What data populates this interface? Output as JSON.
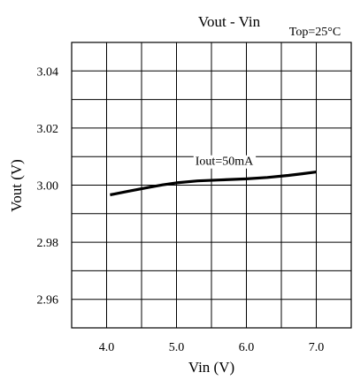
{
  "chart_data": {
    "type": "line",
    "title": "Vout - Vin",
    "condition": "Top=25°C",
    "xlabel": "Vin (V)",
    "ylabel": "Vout (V)",
    "xlim": [
      3.5,
      7.5
    ],
    "ylim": [
      2.95,
      3.05
    ],
    "x_ticks": [
      4.0,
      5.0,
      6.0,
      7.0
    ],
    "x_tick_labels": [
      "4.0",
      "5.0",
      "6.0",
      "7.0"
    ],
    "y_ticks": [
      2.96,
      2.98,
      3.0,
      3.02,
      3.04
    ],
    "y_tick_labels": [
      "2.96",
      "2.98",
      "3.00",
      "3.02",
      "3.04"
    ],
    "x_grid": [
      3.5,
      4.0,
      4.5,
      5.0,
      5.5,
      6.0,
      6.5,
      7.0,
      7.5
    ],
    "y_grid": [
      2.95,
      2.96,
      2.97,
      2.98,
      2.99,
      3.0,
      3.01,
      3.02,
      3.03,
      3.04,
      3.05
    ],
    "grid": true,
    "series": [
      {
        "name": "",
        "x": [
          4.05,
          4.3,
          4.6,
          4.8,
          5.0,
          5.3,
          5.6,
          6.0,
          6.3,
          6.6,
          6.8,
          7.0
        ],
        "y": [
          2.9966,
          2.9978,
          2.9992,
          3.0001,
          3.0008,
          3.0015,
          3.0018,
          3.0022,
          3.0027,
          3.0034,
          3.004,
          3.0046
        ]
      }
    ],
    "annotations": [
      {
        "text": "Iout=50mA",
        "x": 6.0,
        "y": 3.0086
      }
    ]
  }
}
